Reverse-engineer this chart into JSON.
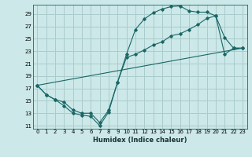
{
  "title": "",
  "xlabel": "Humidex (Indice chaleur)",
  "bg_color": "#cce8e8",
  "grid_color": "#aacccc",
  "line_color": "#1a6666",
  "xlim": [
    -0.5,
    23.5
  ],
  "ylim": [
    10.5,
    30.5
  ],
  "xticks": [
    0,
    1,
    2,
    3,
    4,
    5,
    6,
    7,
    8,
    9,
    10,
    11,
    12,
    13,
    14,
    15,
    16,
    17,
    18,
    19,
    20,
    21,
    22,
    23
  ],
  "yticks": [
    11,
    13,
    15,
    17,
    19,
    21,
    23,
    25,
    27,
    29
  ],
  "line1_x": [
    0,
    1,
    2,
    3,
    4,
    5,
    6,
    7,
    8,
    9,
    10,
    11,
    12,
    13,
    14,
    15,
    16,
    17,
    18,
    19,
    20,
    21,
    22,
    23
  ],
  "line1_y": [
    17.5,
    16.0,
    15.2,
    14.2,
    13.0,
    12.7,
    12.5,
    11.0,
    13.2,
    18.0,
    22.5,
    26.5,
    28.2,
    29.2,
    29.8,
    30.2,
    30.3,
    29.5,
    29.3,
    29.3,
    28.7,
    25.2,
    23.5,
    23.5
  ],
  "line2_x": [
    0,
    1,
    2,
    3,
    4,
    5,
    6,
    7,
    8,
    9,
    10,
    11,
    12,
    13,
    14,
    15,
    16,
    17,
    18,
    19,
    20,
    21,
    22,
    23
  ],
  "line2_y": [
    17.5,
    16.0,
    15.2,
    14.8,
    13.5,
    13.0,
    13.0,
    11.5,
    13.5,
    18.0,
    22.0,
    22.5,
    23.2,
    24.0,
    24.5,
    25.5,
    25.8,
    26.5,
    27.3,
    28.3,
    28.7,
    22.5,
    23.5,
    23.5
  ],
  "line3_x": [
    0,
    23
  ],
  "line3_y": [
    17.5,
    23.5
  ]
}
